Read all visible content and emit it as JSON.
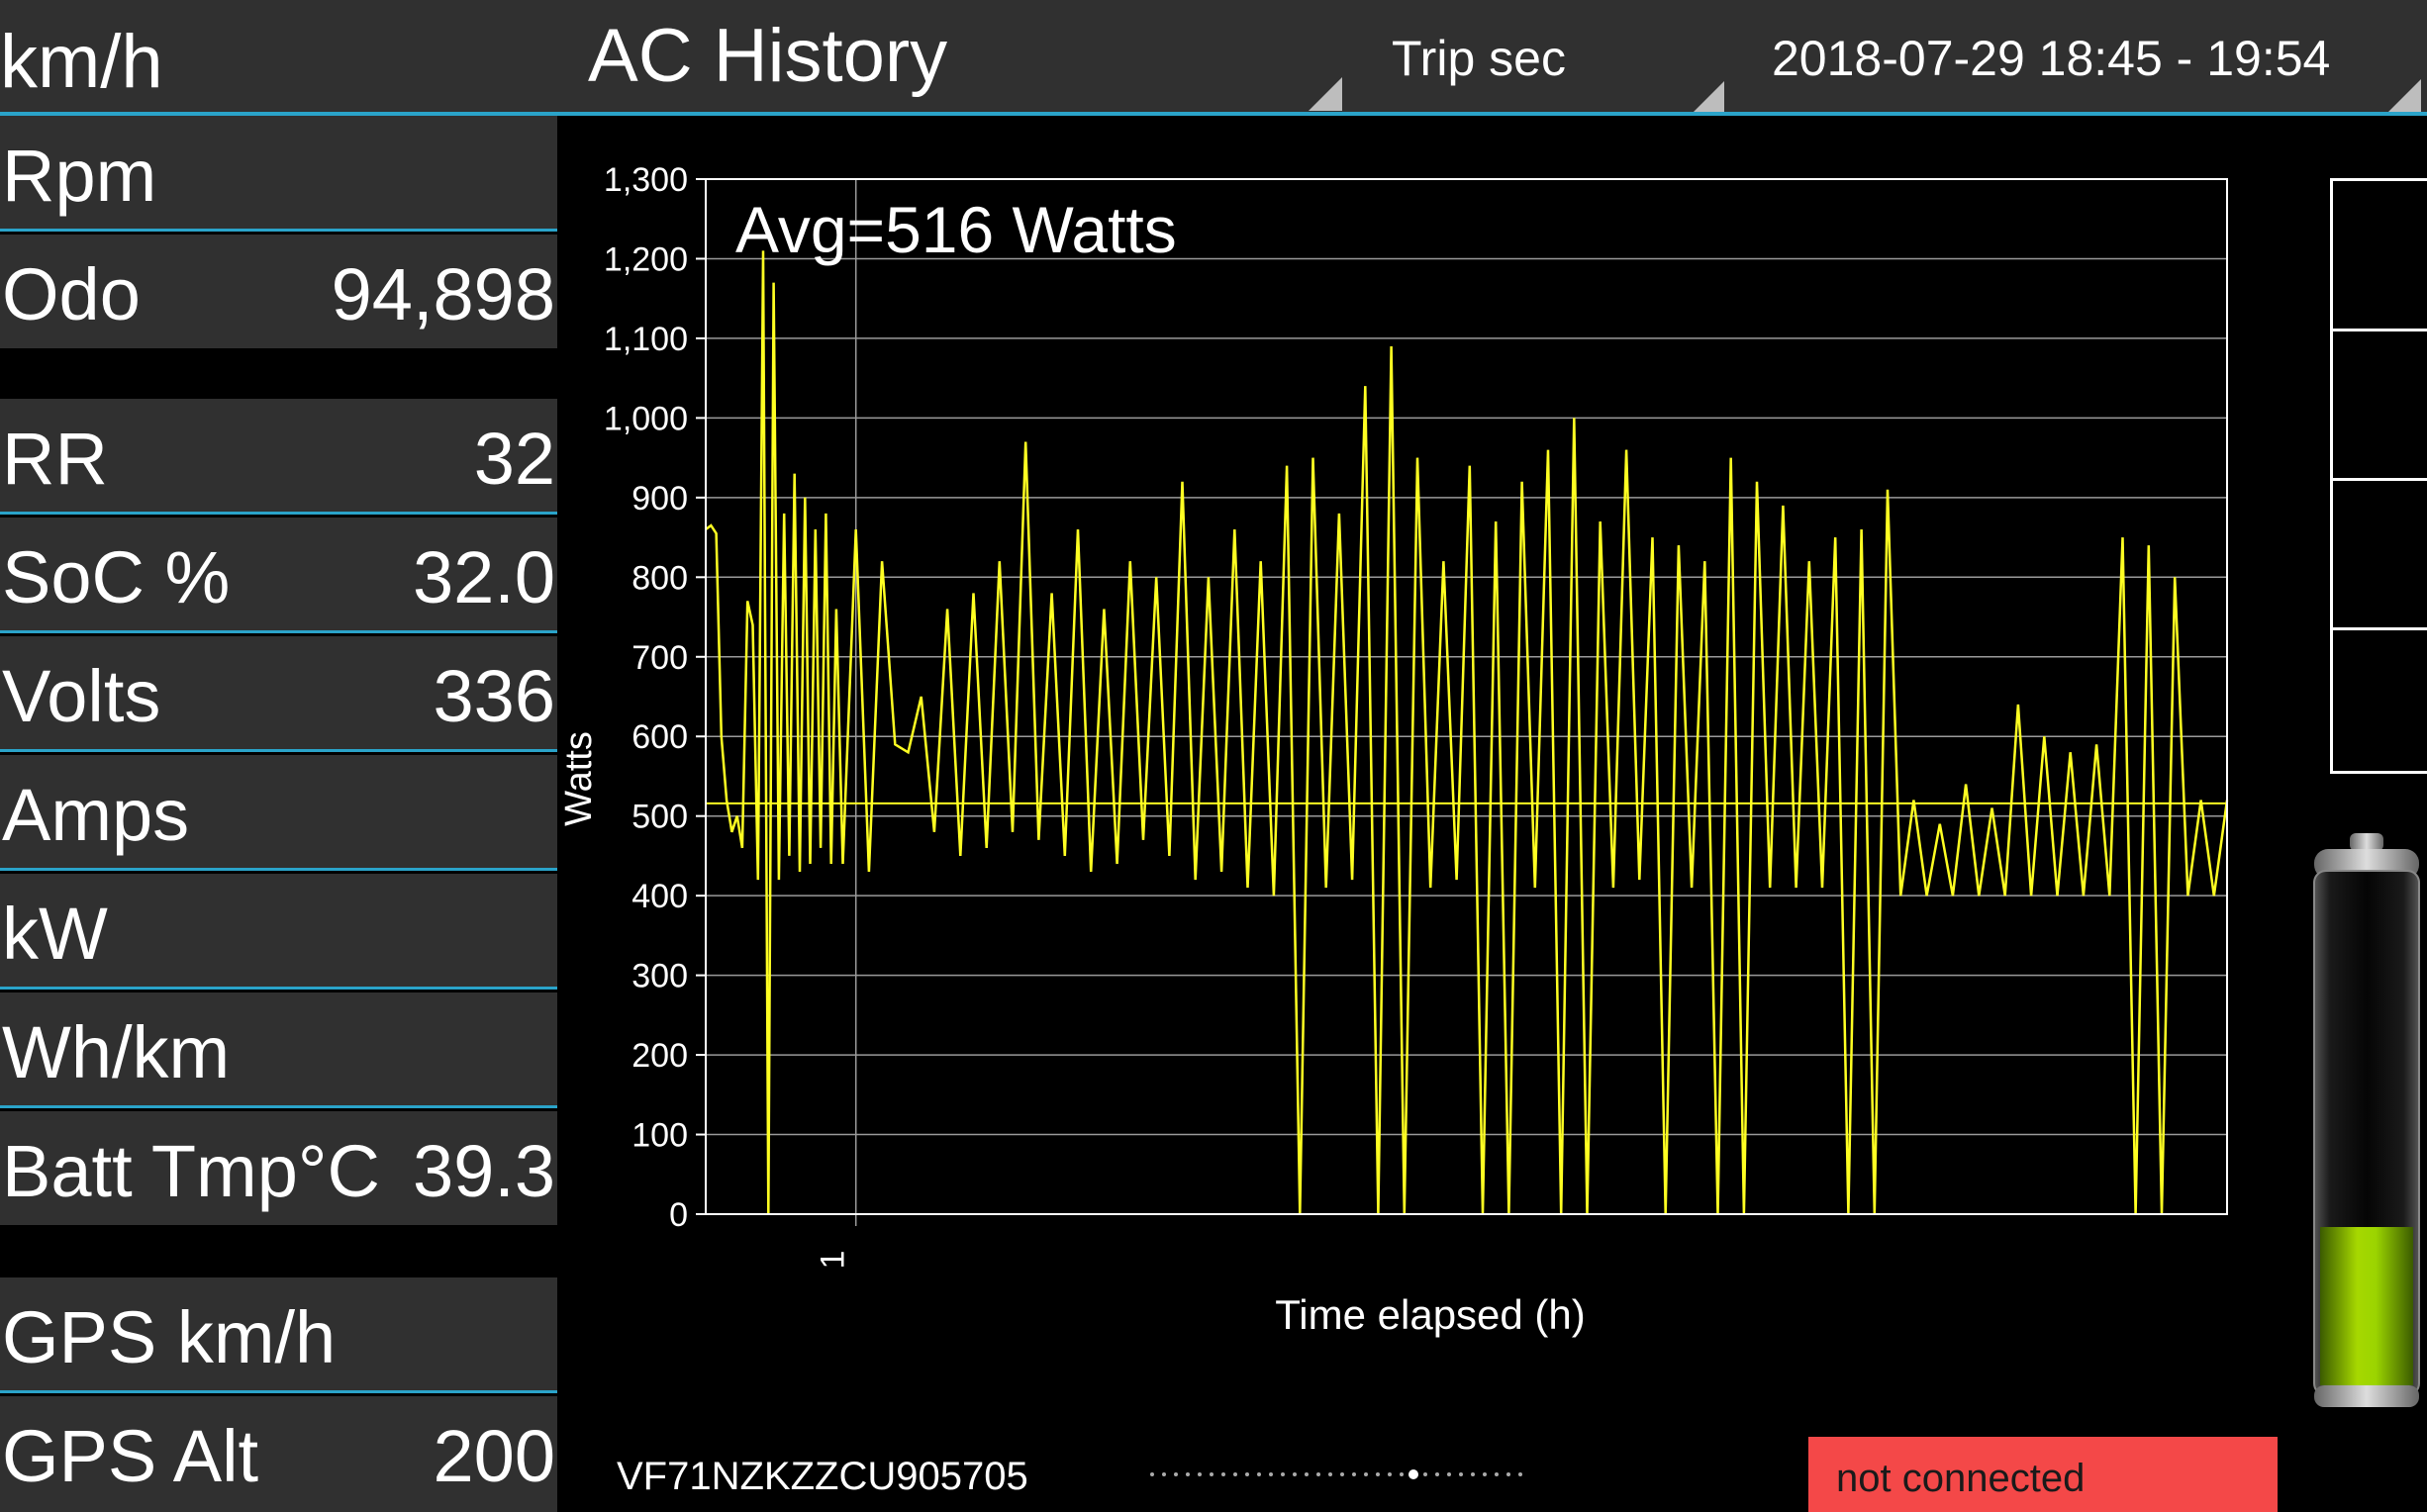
{
  "header": {
    "speed_label": "km/h",
    "title": "AC History",
    "time_unit_select": "Trip sec",
    "date_range_select": "2018-07-29 18:45 - 19:54"
  },
  "sidebar": {
    "rpm_label": "Rpm",
    "odo_label": "Odo",
    "odo_value": "94,898",
    "rr_label": "RR",
    "rr_value": "32",
    "soc_label": "SoC %",
    "soc_value": "32.0",
    "volts_label": "Volts",
    "volts_value": "336",
    "amps_label": "Amps",
    "kw_label": "kW",
    "whkm_label": "Wh/km",
    "batt_label": "Batt Tmp°C",
    "batt_value": "39.3",
    "gps_speed_label": "GPS km/h",
    "gps_alt_label": "GPS Alt",
    "gps_alt_value": "200"
  },
  "chart_data": {
    "type": "line",
    "annotation": "Avg=516 Watts",
    "xlabel": "Time elapsed (h)",
    "ylabel": "Watts",
    "ylim": [
      0,
      1300
    ],
    "yticks": [
      0,
      100,
      200,
      300,
      400,
      500,
      600,
      700,
      800,
      900,
      1000,
      1100,
      1200,
      1300
    ],
    "ytick_labels": [
      "0",
      "100",
      "200",
      "300",
      "400",
      "500",
      "600",
      "700",
      "800",
      "900",
      "1,000",
      "1,100",
      "1,200",
      "1,300"
    ],
    "xlim": [
      0.885,
      2.05
    ],
    "xticks": [
      1
    ],
    "xtick_labels": [
      "1"
    ],
    "avg_line": 516,
    "grid": true,
    "line_color": "#ffff22",
    "series": [
      {
        "x": [
          0.885,
          0.889,
          0.893,
          0.897,
          0.901,
          0.905,
          0.909,
          0.913,
          0.917,
          0.921,
          0.925,
          0.929,
          0.933,
          0.937,
          0.941,
          0.945,
          0.949,
          0.953,
          0.957,
          0.961,
          0.965,
          0.969,
          0.973,
          0.977,
          0.981,
          0.985,
          0.99,
          1.0,
          1.01,
          1.02,
          1.03,
          1.04,
          1.05,
          1.06,
          1.07,
          1.08,
          1.09,
          1.1,
          1.11,
          1.12,
          1.13,
          1.14,
          1.15,
          1.16,
          1.17,
          1.18,
          1.19,
          1.2,
          1.21,
          1.22,
          1.23,
          1.24,
          1.25,
          1.26,
          1.27,
          1.28,
          1.29,
          1.3,
          1.31,
          1.32,
          1.33,
          1.34,
          1.35,
          1.36,
          1.37,
          1.38,
          1.39,
          1.4,
          1.41,
          1.42,
          1.43,
          1.44,
          1.45,
          1.46,
          1.47,
          1.48,
          1.49,
          1.5,
          1.51,
          1.52,
          1.53,
          1.54,
          1.55,
          1.56,
          1.57,
          1.58,
          1.59,
          1.6,
          1.61,
          1.62,
          1.63,
          1.64,
          1.65,
          1.66,
          1.67,
          1.68,
          1.69,
          1.7,
          1.71,
          1.72,
          1.73,
          1.74,
          1.75,
          1.76,
          1.77,
          1.78,
          1.79,
          1.8,
          1.81,
          1.82,
          1.83,
          1.84,
          1.85,
          1.86,
          1.87,
          1.88,
          1.89,
          1.9,
          1.91,
          1.92,
          1.93,
          1.94,
          1.95,
          1.96,
          1.97,
          1.98,
          1.99,
          2.0,
          2.01,
          2.02,
          2.03,
          2.04,
          2.05
        ],
        "y": [
          860,
          865,
          855,
          600,
          520,
          480,
          500,
          460,
          770,
          740,
          420,
          1210,
          0,
          1170,
          420,
          880,
          450,
          930,
          430,
          900,
          440,
          860,
          460,
          880,
          440,
          760,
          440,
          860,
          430,
          820,
          590,
          580,
          650,
          480,
          760,
          450,
          780,
          460,
          820,
          480,
          970,
          470,
          780,
          450,
          860,
          430,
          760,
          440,
          820,
          470,
          800,
          450,
          920,
          420,
          800,
          430,
          860,
          410,
          820,
          400,
          940,
          0,
          950,
          410,
          880,
          420,
          1040,
          0,
          1090,
          0,
          950,
          410,
          820,
          420,
          940,
          0,
          870,
          0,
          920,
          410,
          960,
          0,
          1000,
          0,
          870,
          410,
          960,
          420,
          850,
          0,
          840,
          410,
          820,
          0,
          950,
          0,
          920,
          410,
          890,
          410,
          820,
          410,
          850,
          0,
          860,
          0,
          910,
          400,
          520,
          400,
          490,
          400,
          540,
          400,
          510,
          400,
          640,
          400,
          600,
          400,
          580,
          400,
          590,
          400,
          850,
          0,
          840,
          0,
          800,
          400,
          520,
          400,
          520
        ]
      }
    ]
  },
  "footer": {
    "vin": "VF71NZKZZCU905705",
    "status": "not connected"
  },
  "colors": {
    "panel_bg": "#303030",
    "divider": "#2aa3c9",
    "status_bg": "#f44848"
  }
}
